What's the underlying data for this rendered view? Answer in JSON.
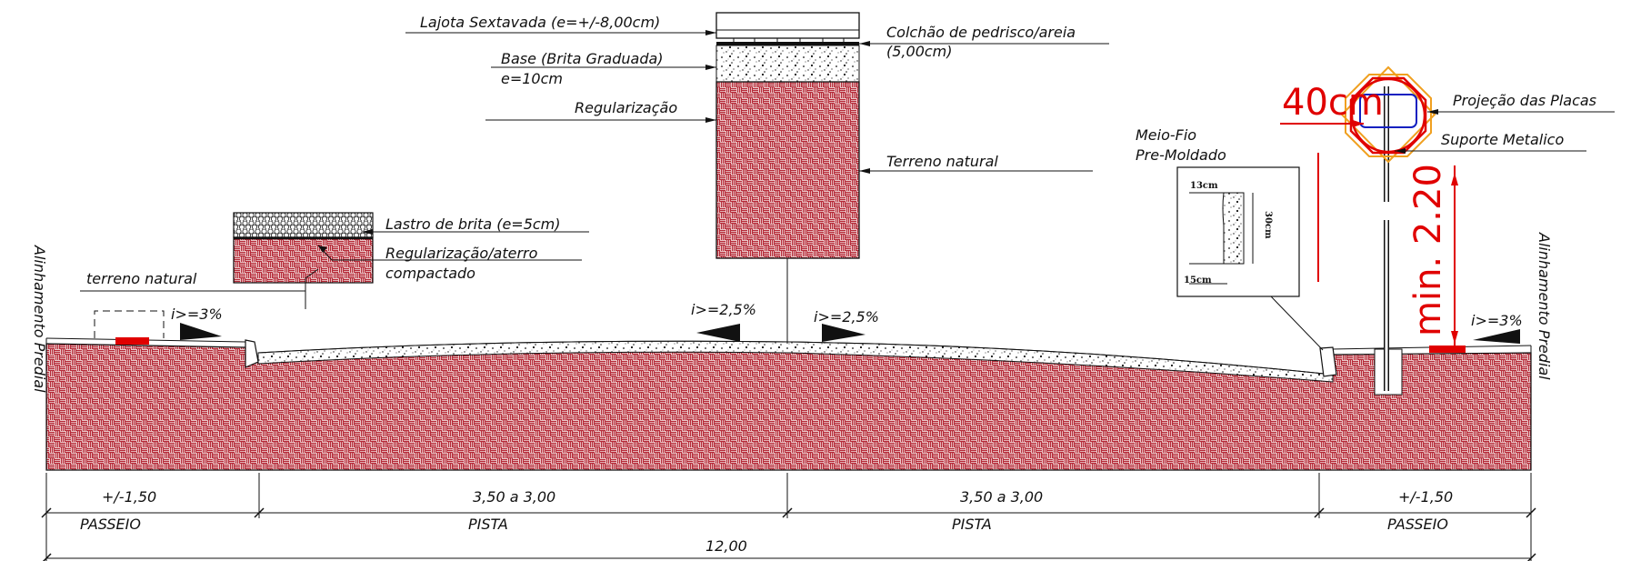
{
  "layers_column": {
    "lajota": "Lajota Sextavada (e=+/-8,00cm)",
    "colchao_1": "Colchão de pedrisco/areia",
    "colchao_2": "(5,00cm)",
    "base_1": "Base (Brita Graduada)",
    "base_2": "e=10cm",
    "regularizacao": "Regularização",
    "terreno": "Terreno natural"
  },
  "small_block": {
    "lastro": "Lastro de brita (e=5cm)",
    "regularizacao_1": "Regularização/aterro",
    "regularizacao_2": "compactado",
    "terreno": "terreno natural"
  },
  "meio_fio": {
    "title_1": "Meio-Fio",
    "title_2": "Pre-Moldado",
    "dim_top": "13cm",
    "dim_height": "30cm",
    "dim_bottom": "15cm"
  },
  "signpost": {
    "width_label": "40cm",
    "height_label": "min. 2.20",
    "projecao": "Projeção das Placas",
    "suporte": "Suporte Metalico"
  },
  "slopes": {
    "left_sidewalk": "i>=3%",
    "road_left": "i>=2,5%",
    "road_right": "i>=2,5%",
    "right_sidewalk": "i>=3%"
  },
  "alinhamento_left": "Alinhamento Predial",
  "alinhamento_right": "Alinhamento Predial",
  "dimensions": {
    "passeio_left_value": "+/-1,50",
    "passeio_left_label": "PASSEIO",
    "pista_left_value": "3,50 a 3,00",
    "pista_left_label": "PISTA",
    "pista_right_value": "3,50 a 3,00",
    "pista_right_label": "PISTA",
    "passeio_right_value": "+/-1,50",
    "passeio_right_label": "PASSEIO",
    "total": "12,00"
  },
  "colors": {
    "brick": "#b52a38",
    "red_annotation": "#e00000",
    "plate_orange": "#f0a020",
    "plate_blue": "#1020c0"
  }
}
